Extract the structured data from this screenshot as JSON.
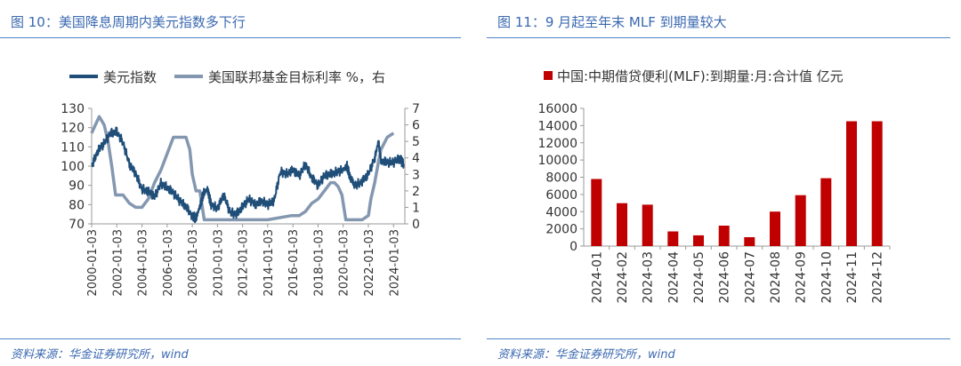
{
  "left": {
    "title": "图 10：美国降息周期内美元指数多下行",
    "source": "资料来源：华金证券研究所，wind"
  },
  "right": {
    "title": "图 11：9 月起至年末 MLF 到期量较大",
    "source": "资料来源：华金证券研究所，wind"
  },
  "colors": {
    "title_blue": "#3a68b0",
    "rule_blue": "#4f86c6",
    "dxy_line": "#1f4e79",
    "ffr_line": "#8497b0",
    "mlf_bar": "#c00000"
  },
  "chart_data": [
    {
      "type": "line",
      "title": "",
      "xlabel": "",
      "ylabel": "",
      "ylim_left": [
        70,
        130
      ],
      "ylim_right": [
        0,
        7
      ],
      "y_ticks_left": [
        "130",
        "120",
        "110",
        "100",
        "90",
        "80",
        "70"
      ],
      "y_ticks_right": [
        "7",
        "6",
        "5",
        "4",
        "3",
        "2",
        "1",
        "0"
      ],
      "x_tick_labels": [
        "2000-01-03",
        "2002-01-03",
        "2004-01-03",
        "2006-01-03",
        "2008-01-03",
        "2010-01-03",
        "2012-01-03",
        "2014-01-03",
        "2016-01-03",
        "2018-01-03",
        "2020-01-03",
        "2022-01-03",
        "2024-01-03"
      ],
      "legend_position": "top",
      "series": [
        {
          "name": "美元指数",
          "axis": "left",
          "x": [
            2000.0,
            2000.5,
            2001.0,
            2001.5,
            2002.0,
            2002.5,
            2003.0,
            2003.5,
            2004.0,
            2004.5,
            2005.0,
            2005.5,
            2006.0,
            2006.5,
            2007.0,
            2007.5,
            2008.0,
            2008.3,
            2008.6,
            2008.9,
            2009.2,
            2009.5,
            2010.0,
            2010.5,
            2011.0,
            2011.5,
            2012.0,
            2012.5,
            2013.0,
            2013.5,
            2014.0,
            2014.5,
            2015.0,
            2015.5,
            2016.0,
            2016.5,
            2017.0,
            2017.5,
            2018.0,
            2018.5,
            2019.0,
            2019.5,
            2020.0,
            2020.3,
            2020.6,
            2021.0,
            2021.5,
            2022.0,
            2022.5,
            2022.8,
            2023.0,
            2023.5,
            2024.0,
            2024.5,
            2024.8
          ],
          "y": [
            100,
            108,
            112,
            117,
            118,
            112,
            101,
            96,
            88,
            87,
            84,
            91,
            89,
            86,
            82,
            79,
            74,
            73,
            79,
            86,
            88,
            80,
            78,
            85,
            76,
            75,
            79,
            83,
            80,
            82,
            80,
            82,
            97,
            96,
            98,
            95,
            101,
            94,
            90,
            95,
            96,
            97,
            98,
            100,
            93,
            90,
            92,
            96,
            104,
            113,
            103,
            102,
            102,
            104,
            101
          ]
        },
        {
          "name": "美国联邦基金目标利率 %，右",
          "axis": "right",
          "x": [
            2000.0,
            2000.3,
            2000.6,
            2001.0,
            2001.3,
            2001.6,
            2001.9,
            2002.5,
            2003.0,
            2003.5,
            2004.0,
            2004.5,
            2005.0,
            2005.5,
            2006.0,
            2006.5,
            2007.0,
            2007.5,
            2007.8,
            2008.0,
            2008.3,
            2008.6,
            2008.8,
            2008.95,
            2009.5,
            2010.0,
            2012.0,
            2014.0,
            2015.9,
            2016.5,
            2017.0,
            2017.5,
            2018.0,
            2018.5,
            2019.0,
            2019.3,
            2019.6,
            2019.9,
            2020.2,
            2020.5,
            2021.0,
            2021.5,
            2022.0,
            2022.2,
            2022.5,
            2022.8,
            2023.0,
            2023.5,
            2024.0
          ],
          "y": [
            5.5,
            6.0,
            6.5,
            6.0,
            5.0,
            3.5,
            1.75,
            1.75,
            1.25,
            1.0,
            1.0,
            1.5,
            2.5,
            3.25,
            4.25,
            5.25,
            5.25,
            5.25,
            4.5,
            3.0,
            2.0,
            2.0,
            1.0,
            0.25,
            0.25,
            0.25,
            0.25,
            0.25,
            0.5,
            0.5,
            0.75,
            1.25,
            1.5,
            2.0,
            2.5,
            2.5,
            2.25,
            1.75,
            0.25,
            0.25,
            0.25,
            0.25,
            0.5,
            1.5,
            2.5,
            3.75,
            4.5,
            5.25,
            5.5
          ]
        }
      ]
    },
    {
      "type": "bar",
      "title": "",
      "xlabel": "",
      "ylabel": "",
      "ylim": [
        0,
        16000
      ],
      "y_ticks": [
        "16000",
        "14000",
        "12000",
        "10000",
        "8000",
        "6000",
        "4000",
        "2000",
        "0"
      ],
      "legend_position": "top",
      "categories": [
        "2024-01",
        "2024-02",
        "2024-03",
        "2024-04",
        "2024-05",
        "2024-06",
        "2024-07",
        "2024-08",
        "2024-09",
        "2024-10",
        "2024-11",
        "2024-12"
      ],
      "series": [
        {
          "name": "中国:中期借贷便利(MLF):到期量:月:合计值 亿元",
          "values": [
            7790,
            4990,
            4810,
            1700,
            1250,
            2370,
            1030,
            4010,
            5910,
            7890,
            14500,
            14500
          ]
        }
      ]
    }
  ]
}
